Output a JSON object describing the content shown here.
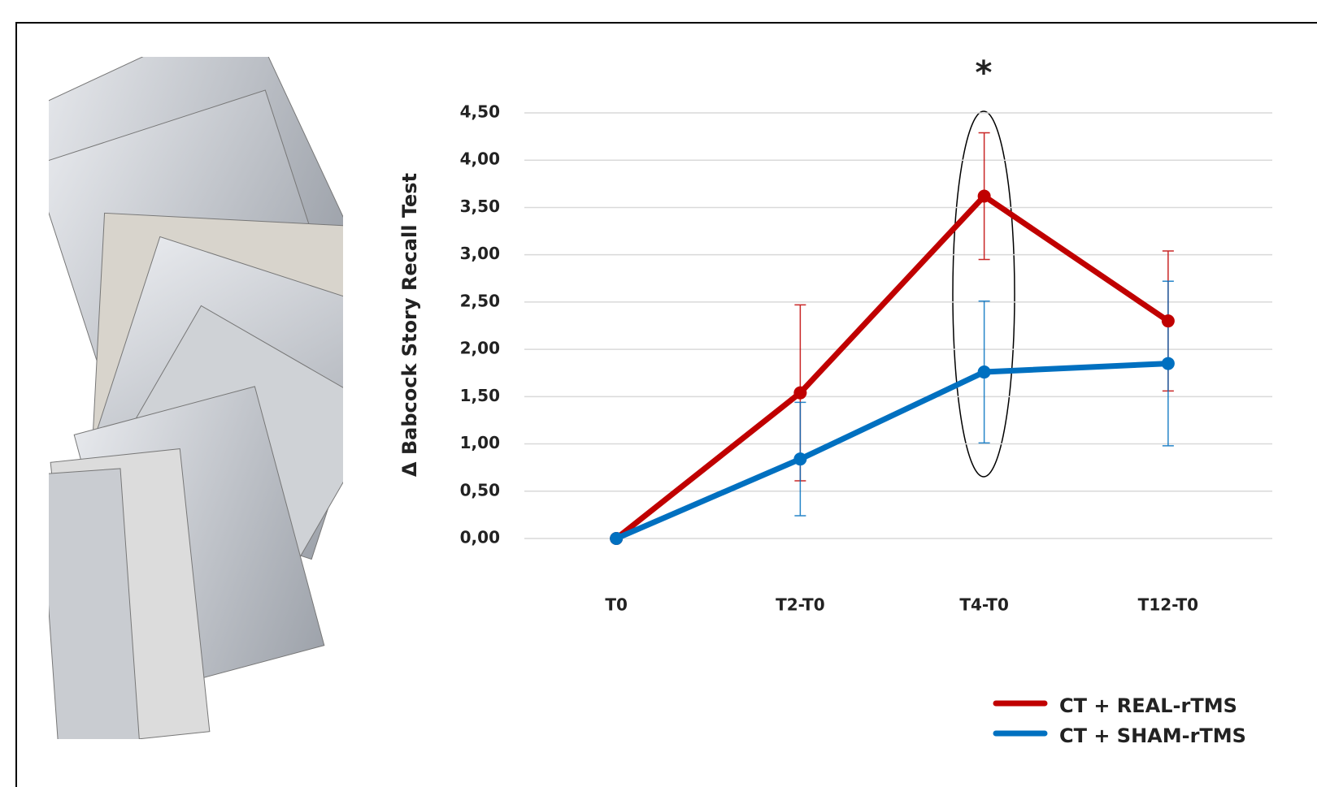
{
  "chart_data": {
    "type": "line",
    "y_label": "Δ Babcock Story Recall Test",
    "annotation": "*",
    "categories": [
      "T0",
      "T2-T0",
      "T4-T0",
      "T12-T0"
    ],
    "series": [
      {
        "name": "CT + REAL-rTMS",
        "color": "#c00000",
        "values": [
          0,
          1.54,
          3.62,
          2.3
        ],
        "errors": [
          null,
          0.93,
          0.67,
          0.74
        ]
      },
      {
        "name": "CT + SHAM-rTMS",
        "color": "#0070c0",
        "values": [
          0,
          0.84,
          1.76,
          1.85
        ],
        "errors": [
          null,
          0.6,
          0.75,
          0.87
        ]
      }
    ],
    "ylim": [
      0,
      4.5
    ],
    "yticks": [
      {
        "value": 0,
        "label": "0,00"
      },
      {
        "value": 0.5,
        "label": "0,50"
      },
      {
        "value": 1,
        "label": "1,00"
      },
      {
        "value": 1.5,
        "label": "1,50"
      },
      {
        "value": 2,
        "label": "2,00"
      },
      {
        "value": 2.5,
        "label": "2,50"
      },
      {
        "value": 3,
        "label": "3,00"
      },
      {
        "value": 3.5,
        "label": "3,50"
      },
      {
        "value": 4,
        "label": "4,00"
      },
      {
        "value": 4.5,
        "label": "4,50"
      }
    ],
    "grid": true,
    "legend": "lower right"
  }
}
